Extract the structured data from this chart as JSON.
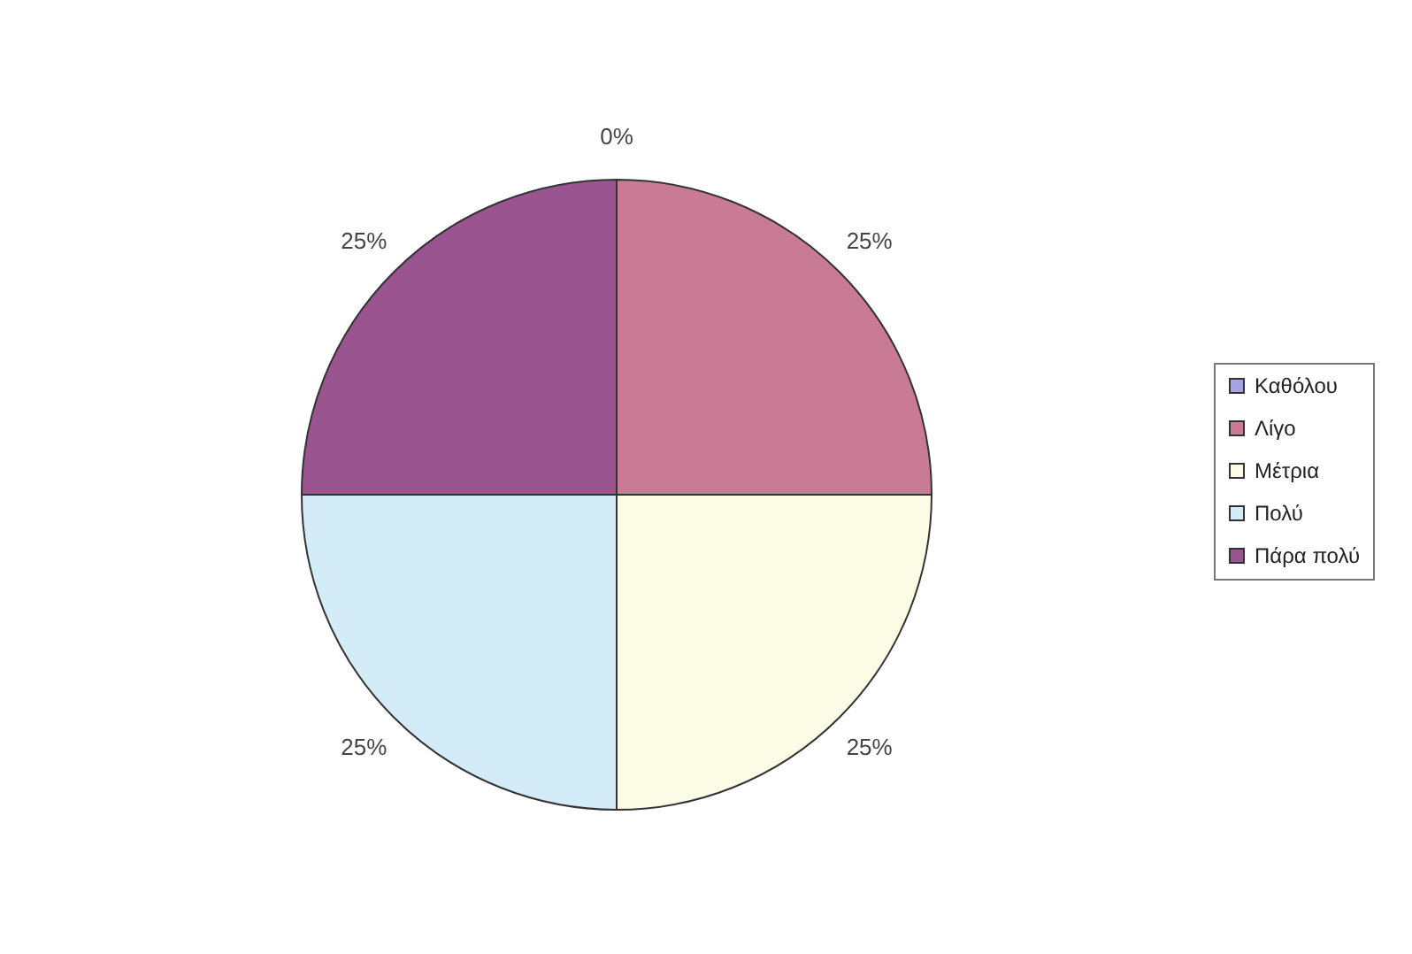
{
  "chart_data": {
    "type": "pie",
    "categories": [
      "Καθόλου",
      "Λίγο",
      "Μέτρια",
      "Πολύ",
      "Πάρα πολύ"
    ],
    "values": [
      0,
      25,
      25,
      25,
      25
    ],
    "colors": [
      "#a3a3e6",
      "#c97b96",
      "#fbfbe6",
      "#d4ecf8",
      "#9a5590"
    ],
    "value_labels": [
      "0%",
      "25%",
      "25%",
      "25%",
      "25%"
    ],
    "legend": "right"
  }
}
